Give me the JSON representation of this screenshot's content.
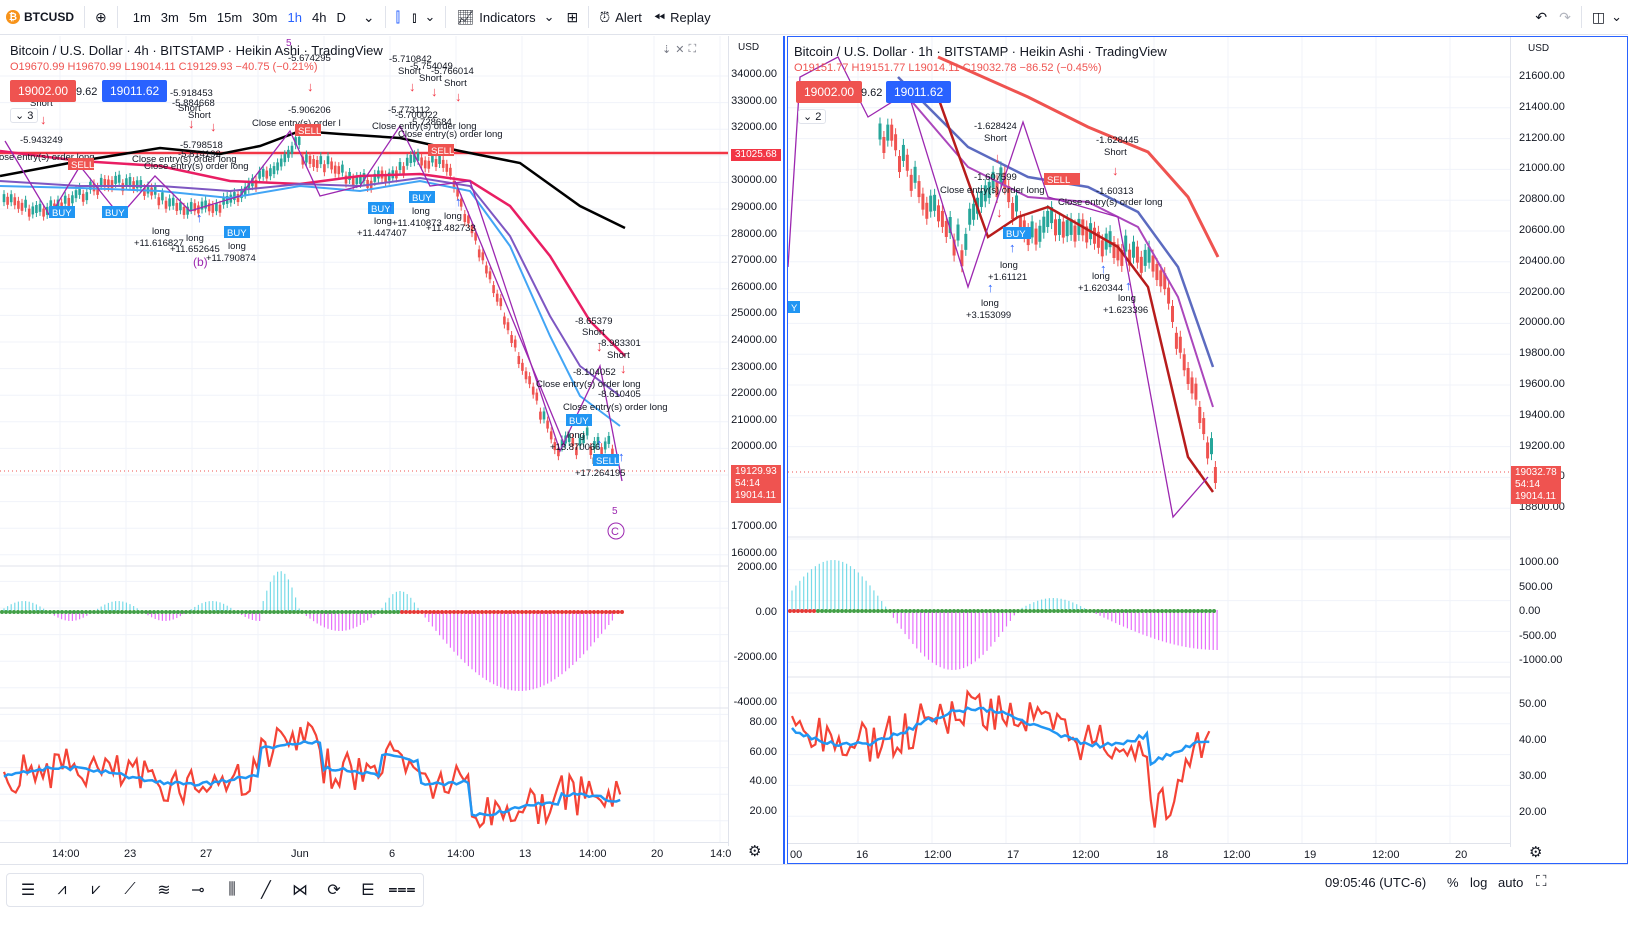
{
  "topbar": {
    "symbol": "BTCUSD",
    "symbol_icon": "bitcoin-icon",
    "intervals": [
      "1m",
      "3m",
      "5m",
      "15m",
      "30m",
      "1h",
      "4h",
      "D"
    ],
    "active_interval": "1h",
    "indicators_label": "Indicators",
    "alert_label": "Alert",
    "replay_label": "Replay"
  },
  "left_chart": {
    "title": "Bitcoin / U.S. Dollar · 4h · BITSTAMP · Heikin Ashi · TradingView",
    "ohlc": {
      "o": "O19670.99",
      "h": "H19670.99",
      "l": "L19014.11",
      "c": "C19129.93",
      "chg": "−40.75 (−0.21%)"
    },
    "sell_price": "19002.00",
    "spread": "9.62",
    "buy_price": "19011.62",
    "indicator_count": "3",
    "currency": "USD",
    "price_axis": [
      "34000.00",
      "33000.00",
      "32000.00",
      "31000.00",
      "30000.00",
      "29000.00",
      "28000.00",
      "27000.00",
      "26000.00",
      "25000.00",
      "24000.00",
      "23000.00",
      "22000.00",
      "21000.00",
      "20000.00",
      "19000.00",
      "18000.00",
      "17000.00",
      "16000.00"
    ],
    "hline_label": "31025.68",
    "last_price": "19129.93",
    "countdown": "54:14",
    "low_label": "19014.11",
    "osc_axis": [
      "2000.00",
      "0.00",
      "-2000.00",
      "-4000.00"
    ],
    "rsi_axis": [
      "80.00",
      "60.00",
      "40.00",
      "20.00"
    ],
    "time_axis": [
      "14:00",
      "23",
      "27",
      "Jun",
      "6",
      "14:00",
      "13",
      "14:00",
      "20",
      "14:0"
    ],
    "wave_labels": [
      "5",
      "(b)",
      "5",
      "C"
    ]
  },
  "right_chart": {
    "title": "Bitcoin / U.S. Dollar · 1h · BITSTAMP · Heikin Ashi · TradingView",
    "ohlc": {
      "o": "O19151.77",
      "h": "H19151.77",
      "l": "L19014.11",
      "c": "C19032.78",
      "chg": "−86.52 (−0.45%)"
    },
    "sell_price": "19002.00",
    "spread": "9.62",
    "buy_price": "19011.62",
    "indicator_count": "2",
    "currency": "USD",
    "price_axis": [
      "21600.00",
      "21400.00",
      "21200.00",
      "21000.00",
      "20800.00",
      "20600.00",
      "20400.00",
      "20200.00",
      "20000.00",
      "19800.00",
      "19600.00",
      "19400.00",
      "19200.00",
      "19000.00",
      "18800.00"
    ],
    "last_price": "19032.78",
    "countdown": "54:14",
    "low_label": "19014.11",
    "osc_axis": [
      "1000.00",
      "500.00",
      "0.00",
      "-500.00",
      "-1000.00"
    ],
    "rsi_axis": [
      "50.00",
      "40.00",
      "30.00",
      "20.00"
    ],
    "time_axis": [
      "00",
      "16",
      "12:00",
      "17",
      "12:00",
      "18",
      "12:00",
      "19",
      "12:00",
      "20"
    ]
  },
  "annotations_left": [
    "-5.943249",
    "Short",
    "-5.918453",
    "-5.884668",
    "Short",
    "-5.798518",
    "-5.814192",
    "Short",
    "-5.906206",
    "-5.773112",
    "-5.700022",
    "-5.728684",
    "-5.710842",
    "-5.754049",
    "-5.766014",
    "Short",
    "Short",
    "Short",
    "-5.674295",
    "Close entry(s) order long",
    "Close entry(s) order long",
    "Close entry(s) order long",
    "Close entry(s) order l",
    "Close entry(s) order long",
    "Close entry(s) order long",
    "BUY",
    "BUY",
    "BUY",
    "BUY",
    "BUY",
    "SELL",
    "SELL",
    "SELL",
    "long",
    "+11.616827",
    "long",
    "+11.652645",
    "long",
    "+11.790874",
    "long",
    "+11.447407",
    "long",
    "+11.410873",
    "long",
    "+11.482733",
    "-8.65379",
    "Short",
    "-8.983301",
    "Short",
    "-8.104052",
    "-8.610405",
    "Close entry(s) order long",
    "Close entry(s) order long",
    "long",
    "+13.870066",
    "long",
    "+17.264195"
  ],
  "annotations_right": [
    "-1.628424",
    "Short",
    "-1.628445",
    "Short",
    "-1.607599",
    "-1.60313",
    "Close entry(s) order long",
    "Close entry(s) order long",
    "SELL",
    "BUY",
    "long",
    "+1.61121",
    "long",
    "+3.153099",
    "long",
    "+1.620344",
    "long",
    "+1.623396"
  ],
  "statusbar": {
    "time": "09:05:46 (UTC-6)",
    "percent": "%",
    "log": "log",
    "auto": "auto"
  },
  "colors": {
    "up": "#26a69a",
    "down": "#ef5350",
    "sell_box": "#ef5350",
    "buy_box": "#2962ff",
    "hline": "#f23645"
  }
}
